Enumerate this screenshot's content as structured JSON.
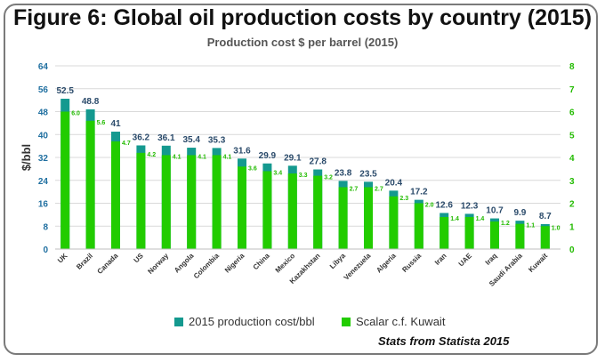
{
  "title": "Figure 6: Global oil production costs by country (2015)",
  "subtitle": "Production cost $ per barrel (2015)",
  "source": "Stats from Statista 2015",
  "colors": {
    "cost": "#14998f",
    "scalar": "#22cc00",
    "scalar_label": "#22bb00",
    "cost_label": "#2a4a6a",
    "grid": "#d9d9d9"
  },
  "chart_data": {
    "type": "bar",
    "title": "Production cost $ per barrel (2015)",
    "ylabel": "$/bbl",
    "ylim": [
      0,
      64
    ],
    "yticks": [
      "0",
      "8",
      "16",
      "24",
      "32",
      "40",
      "48",
      "56",
      "64"
    ],
    "y2lim": [
      0,
      8
    ],
    "y2ticks": [
      "0",
      "1",
      "2",
      "3",
      "4",
      "5",
      "6",
      "7",
      "8"
    ],
    "grid": true,
    "legend_position": "bottom",
    "categories": [
      "UK",
      "Brazil",
      "Canada",
      "US",
      "Norway",
      "Angola",
      "Colombia",
      "Nigeria",
      "China",
      "Mexico",
      "Kazakhstan",
      "Libya",
      "Venezuela",
      "Algeria",
      "Russia",
      "Iran",
      "UAE",
      "Iraq",
      "Saudi Arabia",
      "Kuwait"
    ],
    "series": [
      {
        "name": "2015 production cost/bbl",
        "axis": "left",
        "values": [
          52.5,
          48.8,
          41,
          36.2,
          36.1,
          35.4,
          35.3,
          31.6,
          29.9,
          29.1,
          27.8,
          23.8,
          23.5,
          20.4,
          17.2,
          12.6,
          12.3,
          10.7,
          9.9,
          8.7
        ],
        "labels": [
          "52.5",
          "48.8",
          "41",
          "36.2",
          "36.1",
          "35.4",
          "35.3",
          "31.6",
          "29.9",
          "29.1",
          "27.8",
          "23.8",
          "23.5",
          "20.4",
          "17.2",
          "12.6",
          "12.3",
          "10.7",
          "9.9",
          "8.7"
        ]
      },
      {
        "name": "Scalar c.f. Kuwait",
        "axis": "right",
        "values": [
          6.0,
          5.6,
          4.7,
          4.2,
          4.1,
          4.1,
          4.1,
          3.6,
          3.4,
          3.3,
          3.2,
          2.7,
          2.7,
          2.3,
          2.0,
          1.4,
          1.4,
          1.2,
          1.1,
          1.0
        ],
        "labels": [
          "6.0",
          "5.6",
          "4.7",
          "4.2",
          "4.1",
          "4.1",
          "4.1",
          "3.6",
          "3.4",
          "3.3",
          "3.2",
          "2.7",
          "2.7",
          "2.3",
          "2.0",
          "1.4",
          "1.4",
          "1.2",
          "1.1",
          "1.0"
        ]
      }
    ]
  }
}
